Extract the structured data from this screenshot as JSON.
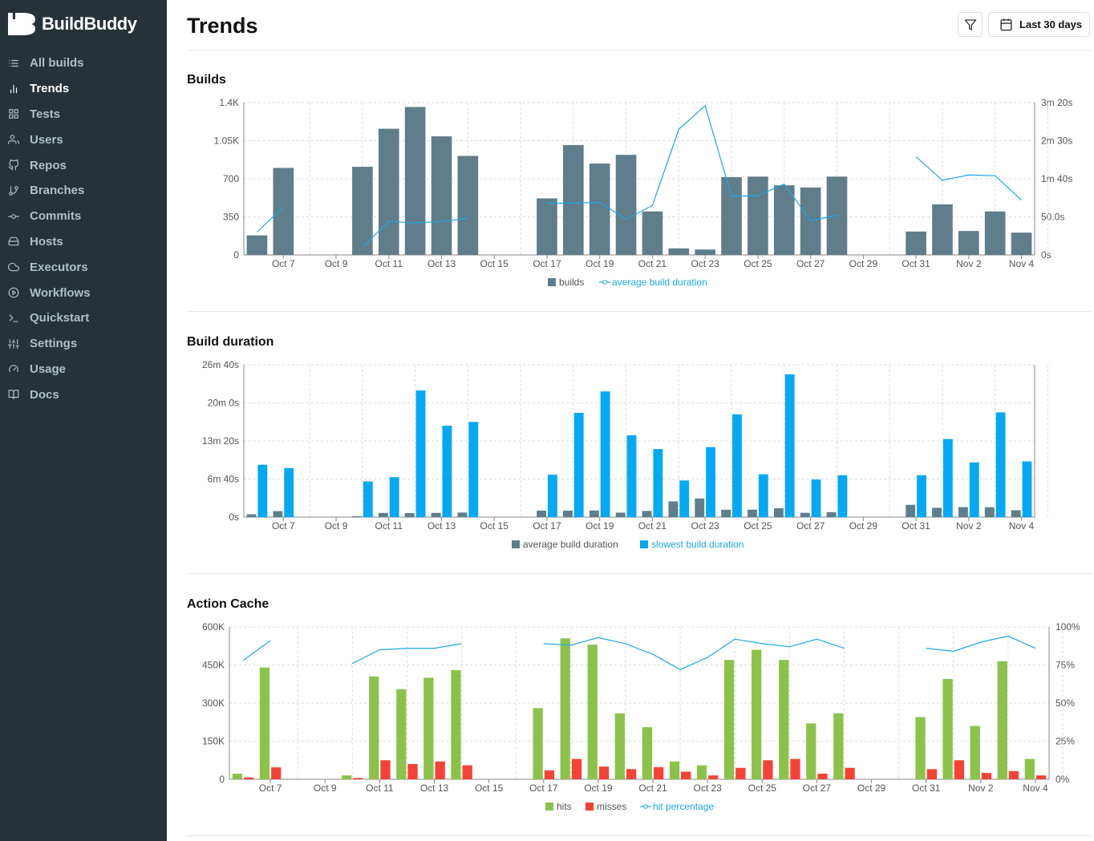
{
  "app": {
    "name": "BuildBuddy"
  },
  "sidebar": {
    "items": [
      {
        "label": "All builds",
        "icon": "list-icon"
      },
      {
        "label": "Trends",
        "icon": "bar-chart-icon"
      },
      {
        "label": "Tests",
        "icon": "grid-icon"
      },
      {
        "label": "Users",
        "icon": "users-icon"
      },
      {
        "label": "Repos",
        "icon": "github-icon"
      },
      {
        "label": "Branches",
        "icon": "git-branch-icon"
      },
      {
        "label": "Commits",
        "icon": "git-commit-icon"
      },
      {
        "label": "Hosts",
        "icon": "hard-drive-icon"
      },
      {
        "label": "Executors",
        "icon": "cloud-icon"
      },
      {
        "label": "Workflows",
        "icon": "play-circle-icon"
      },
      {
        "label": "Quickstart",
        "icon": "terminal-icon"
      },
      {
        "label": "Settings",
        "icon": "sliders-icon"
      },
      {
        "label": "Usage",
        "icon": "gauge-icon"
      },
      {
        "label": "Docs",
        "icon": "book-icon"
      }
    ],
    "active": "Trends"
  },
  "header": {
    "title": "Trends",
    "date_range_label": "Last 30 days"
  },
  "colors": {
    "sidebar_bg": "#263238",
    "builds_bar": "#607d8b",
    "duration_line": "#1ea7e8",
    "slowest_bar": "#03a9f4",
    "hits_bar": "#8bc34a",
    "misses_bar": "#f44336"
  },
  "chart_data": [
    {
      "title": "Builds",
      "type": "bar+line",
      "categories": [
        "Oct 6",
        "Oct 7",
        "Oct 8",
        "Oct 9",
        "Oct 10",
        "Oct 11",
        "Oct 12",
        "Oct 13",
        "Oct 14",
        "Oct 15",
        "Oct 16",
        "Oct 17",
        "Oct 18",
        "Oct 19",
        "Oct 20",
        "Oct 21",
        "Oct 22",
        "Oct 23",
        "Oct 24",
        "Oct 25",
        "Oct 26",
        "Oct 27",
        "Oct 28",
        "Oct 29",
        "Oct 30",
        "Oct 31",
        "Nov 1",
        "Nov 2",
        "Nov 3",
        "Nov 4"
      ],
      "x_tick_labels": [
        "Oct 7",
        "Oct 9",
        "Oct 11",
        "Oct 13",
        "Oct 15",
        "Oct 17",
        "Oct 19",
        "Oct 21",
        "Oct 23",
        "Oct 25",
        "Oct 27",
        "Oct 29",
        "Oct 31",
        "Nov 2",
        "Nov 4"
      ],
      "y_left_ticks": [
        "0",
        "350",
        "700",
        "1.05K",
        "1.4K"
      ],
      "y_left_range": [
        0,
        1400
      ],
      "y_right_ticks": [
        "0s",
        "50.0s",
        "1m 40s",
        "2m 30s",
        "3m 20s"
      ],
      "y_right_range": [
        0,
        200
      ],
      "series": [
        {
          "name": "builds",
          "type": "bar",
          "values": [
            180,
            800,
            null,
            null,
            810,
            1160,
            1360,
            1090,
            910,
            null,
            null,
            520,
            1010,
            840,
            920,
            400,
            60,
            50,
            715,
            720,
            640,
            620,
            720,
            null,
            null,
            215,
            465,
            220,
            400,
            205
          ]
        },
        {
          "name": "average build duration",
          "type": "line",
          "unit": "seconds",
          "values": [
            30,
            63,
            null,
            null,
            10,
            44,
            42,
            44,
            48,
            null,
            null,
            68,
            68,
            69,
            47,
            65,
            165,
            196,
            77,
            78,
            93,
            45,
            52,
            null,
            null,
            129,
            98,
            105,
            104,
            72
          ]
        }
      ],
      "legend_position": "bottom"
    },
    {
      "title": "Build duration",
      "type": "bar",
      "categories": [
        "Oct 6",
        "Oct 7",
        "Oct 8",
        "Oct 9",
        "Oct 10",
        "Oct 11",
        "Oct 12",
        "Oct 13",
        "Oct 14",
        "Oct 15",
        "Oct 16",
        "Oct 17",
        "Oct 18",
        "Oct 19",
        "Oct 20",
        "Oct 21",
        "Oct 22",
        "Oct 23",
        "Oct 24",
        "Oct 25",
        "Oct 26",
        "Oct 27",
        "Oct 28",
        "Oct 29",
        "Oct 30",
        "Oct 31",
        "Nov 1",
        "Nov 2",
        "Nov 3",
        "Nov 4"
      ],
      "x_tick_labels": [
        "Oct 7",
        "Oct 9",
        "Oct 11",
        "Oct 13",
        "Oct 15",
        "Oct 17",
        "Oct 19",
        "Oct 21",
        "Oct 23",
        "Oct 25",
        "Oct 27",
        "Oct 29",
        "Oct 31",
        "Nov 2",
        "Nov 4"
      ],
      "y_ticks": [
        "0s",
        "6m 40s",
        "13m 20s",
        "20m 0s",
        "26m 40s"
      ],
      "y_range": [
        0,
        1600
      ],
      "series": [
        {
          "name": "average build duration",
          "unit": "seconds",
          "values": [
            30,
            63,
            null,
            null,
            10,
            44,
            42,
            44,
            48,
            null,
            null,
            68,
            68,
            69,
            47,
            65,
            165,
            196,
            77,
            78,
            93,
            45,
            52,
            null,
            null,
            129,
            98,
            105,
            104,
            72
          ]
        },
        {
          "name": "slowest build duration",
          "unit": "seconds",
          "values": [
            550,
            515,
            null,
            null,
            375,
            420,
            1330,
            960,
            1000,
            null,
            null,
            445,
            1095,
            1320,
            860,
            715,
            385,
            735,
            1080,
            450,
            1500,
            395,
            440,
            null,
            null,
            440,
            820,
            575,
            1100,
            585
          ]
        }
      ],
      "legend_position": "bottom"
    },
    {
      "title": "Action Cache",
      "type": "bar+line",
      "categories": [
        "Oct 6",
        "Oct 7",
        "Oct 8",
        "Oct 9",
        "Oct 10",
        "Oct 11",
        "Oct 12",
        "Oct 13",
        "Oct 14",
        "Oct 15",
        "Oct 16",
        "Oct 17",
        "Oct 18",
        "Oct 19",
        "Oct 20",
        "Oct 21",
        "Oct 22",
        "Oct 23",
        "Oct 24",
        "Oct 25",
        "Oct 26",
        "Oct 27",
        "Oct 28",
        "Oct 29",
        "Oct 30",
        "Oct 31",
        "Nov 1",
        "Nov 2",
        "Nov 3",
        "Nov 4"
      ],
      "x_tick_labels": [
        "Oct 7",
        "Oct 9",
        "Oct 11",
        "Oct 13",
        "Oct 15",
        "Oct 17",
        "Oct 19",
        "Oct 21",
        "Oct 23",
        "Oct 25",
        "Oct 27",
        "Oct 29",
        "Oct 31",
        "Nov 2",
        "Nov 4"
      ],
      "y_left_ticks": [
        "0",
        "150K",
        "300K",
        "450K",
        "600K"
      ],
      "y_left_range": [
        0,
        600000
      ],
      "y_right_ticks": [
        "0%",
        "25%",
        "50%",
        "75%",
        "100%"
      ],
      "y_right_range": [
        0,
        100
      ],
      "series": [
        {
          "name": "hits",
          "type": "bar",
          "values": [
            22000,
            440000,
            null,
            null,
            15000,
            405000,
            355000,
            400000,
            430000,
            null,
            null,
            280000,
            555000,
            530000,
            260000,
            205000,
            70000,
            55000,
            470000,
            510000,
            470000,
            220000,
            260000,
            null,
            null,
            245000,
            395000,
            210000,
            465000,
            80000
          ]
        },
        {
          "name": "misses",
          "type": "bar",
          "values": [
            7000,
            47000,
            null,
            null,
            5000,
            75000,
            60000,
            70000,
            55000,
            null,
            null,
            35000,
            80000,
            50000,
            40000,
            48000,
            30000,
            15000,
            45000,
            75000,
            80000,
            22000,
            45000,
            null,
            null,
            40000,
            75000,
            25000,
            32000,
            15000
          ]
        },
        {
          "name": "hit percentage",
          "type": "line",
          "unit": "percent",
          "values": [
            78,
            91,
            null,
            null,
            76,
            85,
            86,
            86,
            89,
            null,
            null,
            89,
            88,
            93,
            89,
            82,
            72,
            80,
            92,
            89,
            87,
            92,
            86,
            null,
            null,
            86,
            84,
            90,
            94,
            86
          ]
        }
      ],
      "legend_position": "bottom"
    }
  ]
}
